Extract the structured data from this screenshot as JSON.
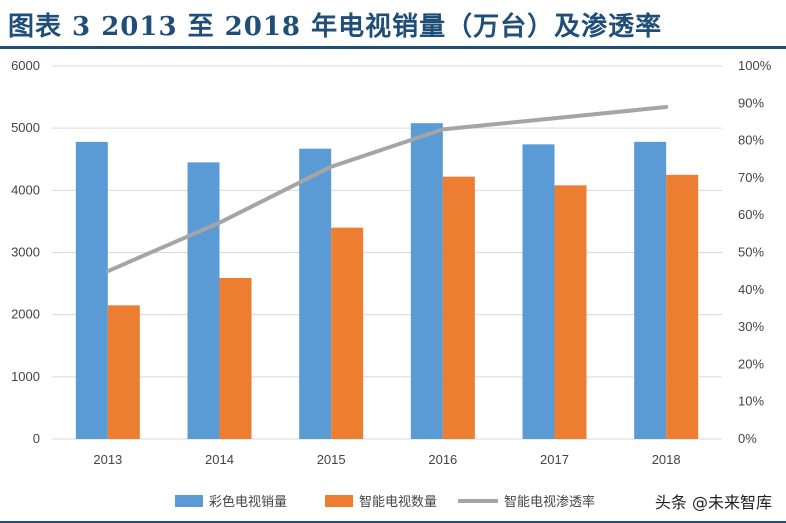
{
  "header": {
    "title": "图表 3  2013 至 2018 年电视销量（万台）及渗透率"
  },
  "watermark": "头条 @未来智库",
  "colors": {
    "series1": "#5b9bd5",
    "series2": "#ed7d31",
    "series3": "#a5a5a5",
    "title": "#1f4e79",
    "grid": "#d9d9d9"
  },
  "chart_data": {
    "type": "bar",
    "categories": [
      "2013",
      "2014",
      "2015",
      "2016",
      "2017",
      "2018"
    ],
    "ylim": [
      0,
      6000
    ],
    "y2lim": [
      0,
      1.0
    ],
    "yticks": [
      "0",
      "1000",
      "2000",
      "3000",
      "4000",
      "5000",
      "6000"
    ],
    "y2ticks": [
      "0%",
      "10%",
      "20%",
      "30%",
      "40%",
      "50%",
      "60%",
      "70%",
      "80%",
      "90%",
      "100%"
    ],
    "grid": true,
    "legend": "bottom",
    "series": [
      {
        "name": "彩色电视销量",
        "type": "bar",
        "axis": "left",
        "values": [
          4780,
          4450,
          4670,
          5080,
          4740,
          4780
        ]
      },
      {
        "name": "智能电视数量",
        "type": "bar",
        "axis": "left",
        "values": [
          2150,
          2590,
          3400,
          4220,
          4080,
          4250
        ]
      },
      {
        "name": "智能电视渗透率",
        "type": "line",
        "axis": "right",
        "values": [
          0.45,
          0.58,
          0.73,
          0.83,
          0.86,
          0.89
        ]
      }
    ]
  }
}
